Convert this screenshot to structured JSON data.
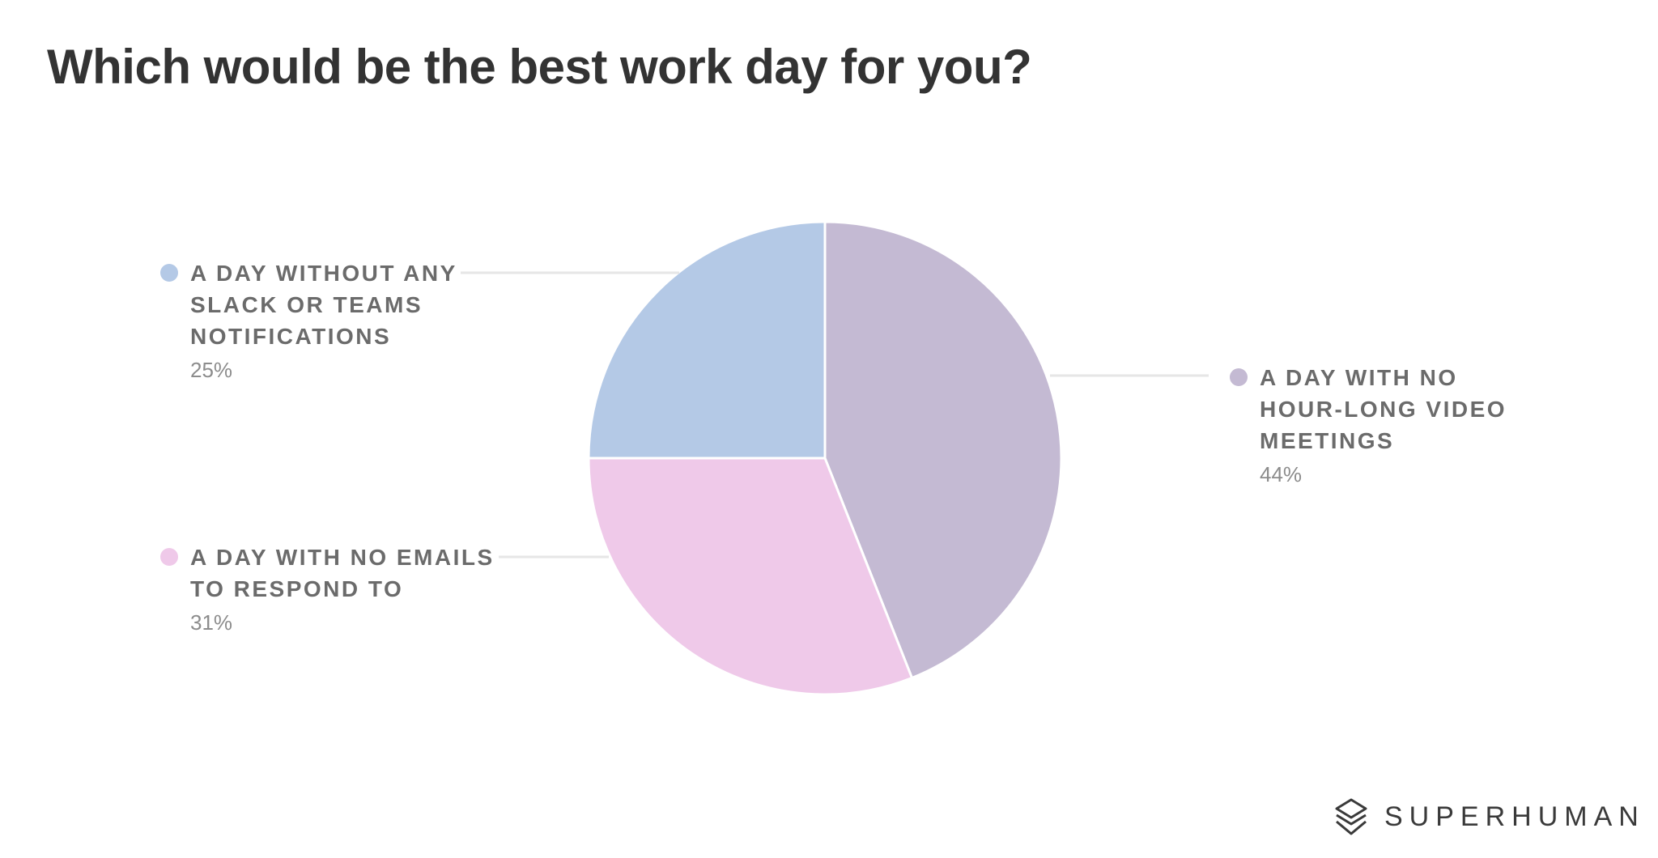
{
  "chart_data": {
    "type": "pie",
    "title": "Which would be the best work day for you?",
    "slices": [
      {
        "label_lines": [
          "A DAY WITH NO",
          "HOUR-LONG VIDEO",
          "MEETINGS"
        ],
        "value": 44,
        "value_label": "44%",
        "color": "#c4bad3"
      },
      {
        "label_lines": [
          "A DAY WITH NO EMAILS",
          "TO RESPOND TO"
        ],
        "value": 31,
        "value_label": "31%",
        "color": "#efc9e9"
      },
      {
        "label_lines": [
          "A DAY WITHOUT ANY",
          "SLACK OR TEAMS",
          "NOTIFICATIONS"
        ],
        "value": 25,
        "value_label": "25%",
        "color": "#b4c9e6"
      }
    ],
    "legend": "callouts"
  },
  "brand": {
    "name": "SUPERHUMAN",
    "logo_icon": "superhuman-logo-icon"
  }
}
